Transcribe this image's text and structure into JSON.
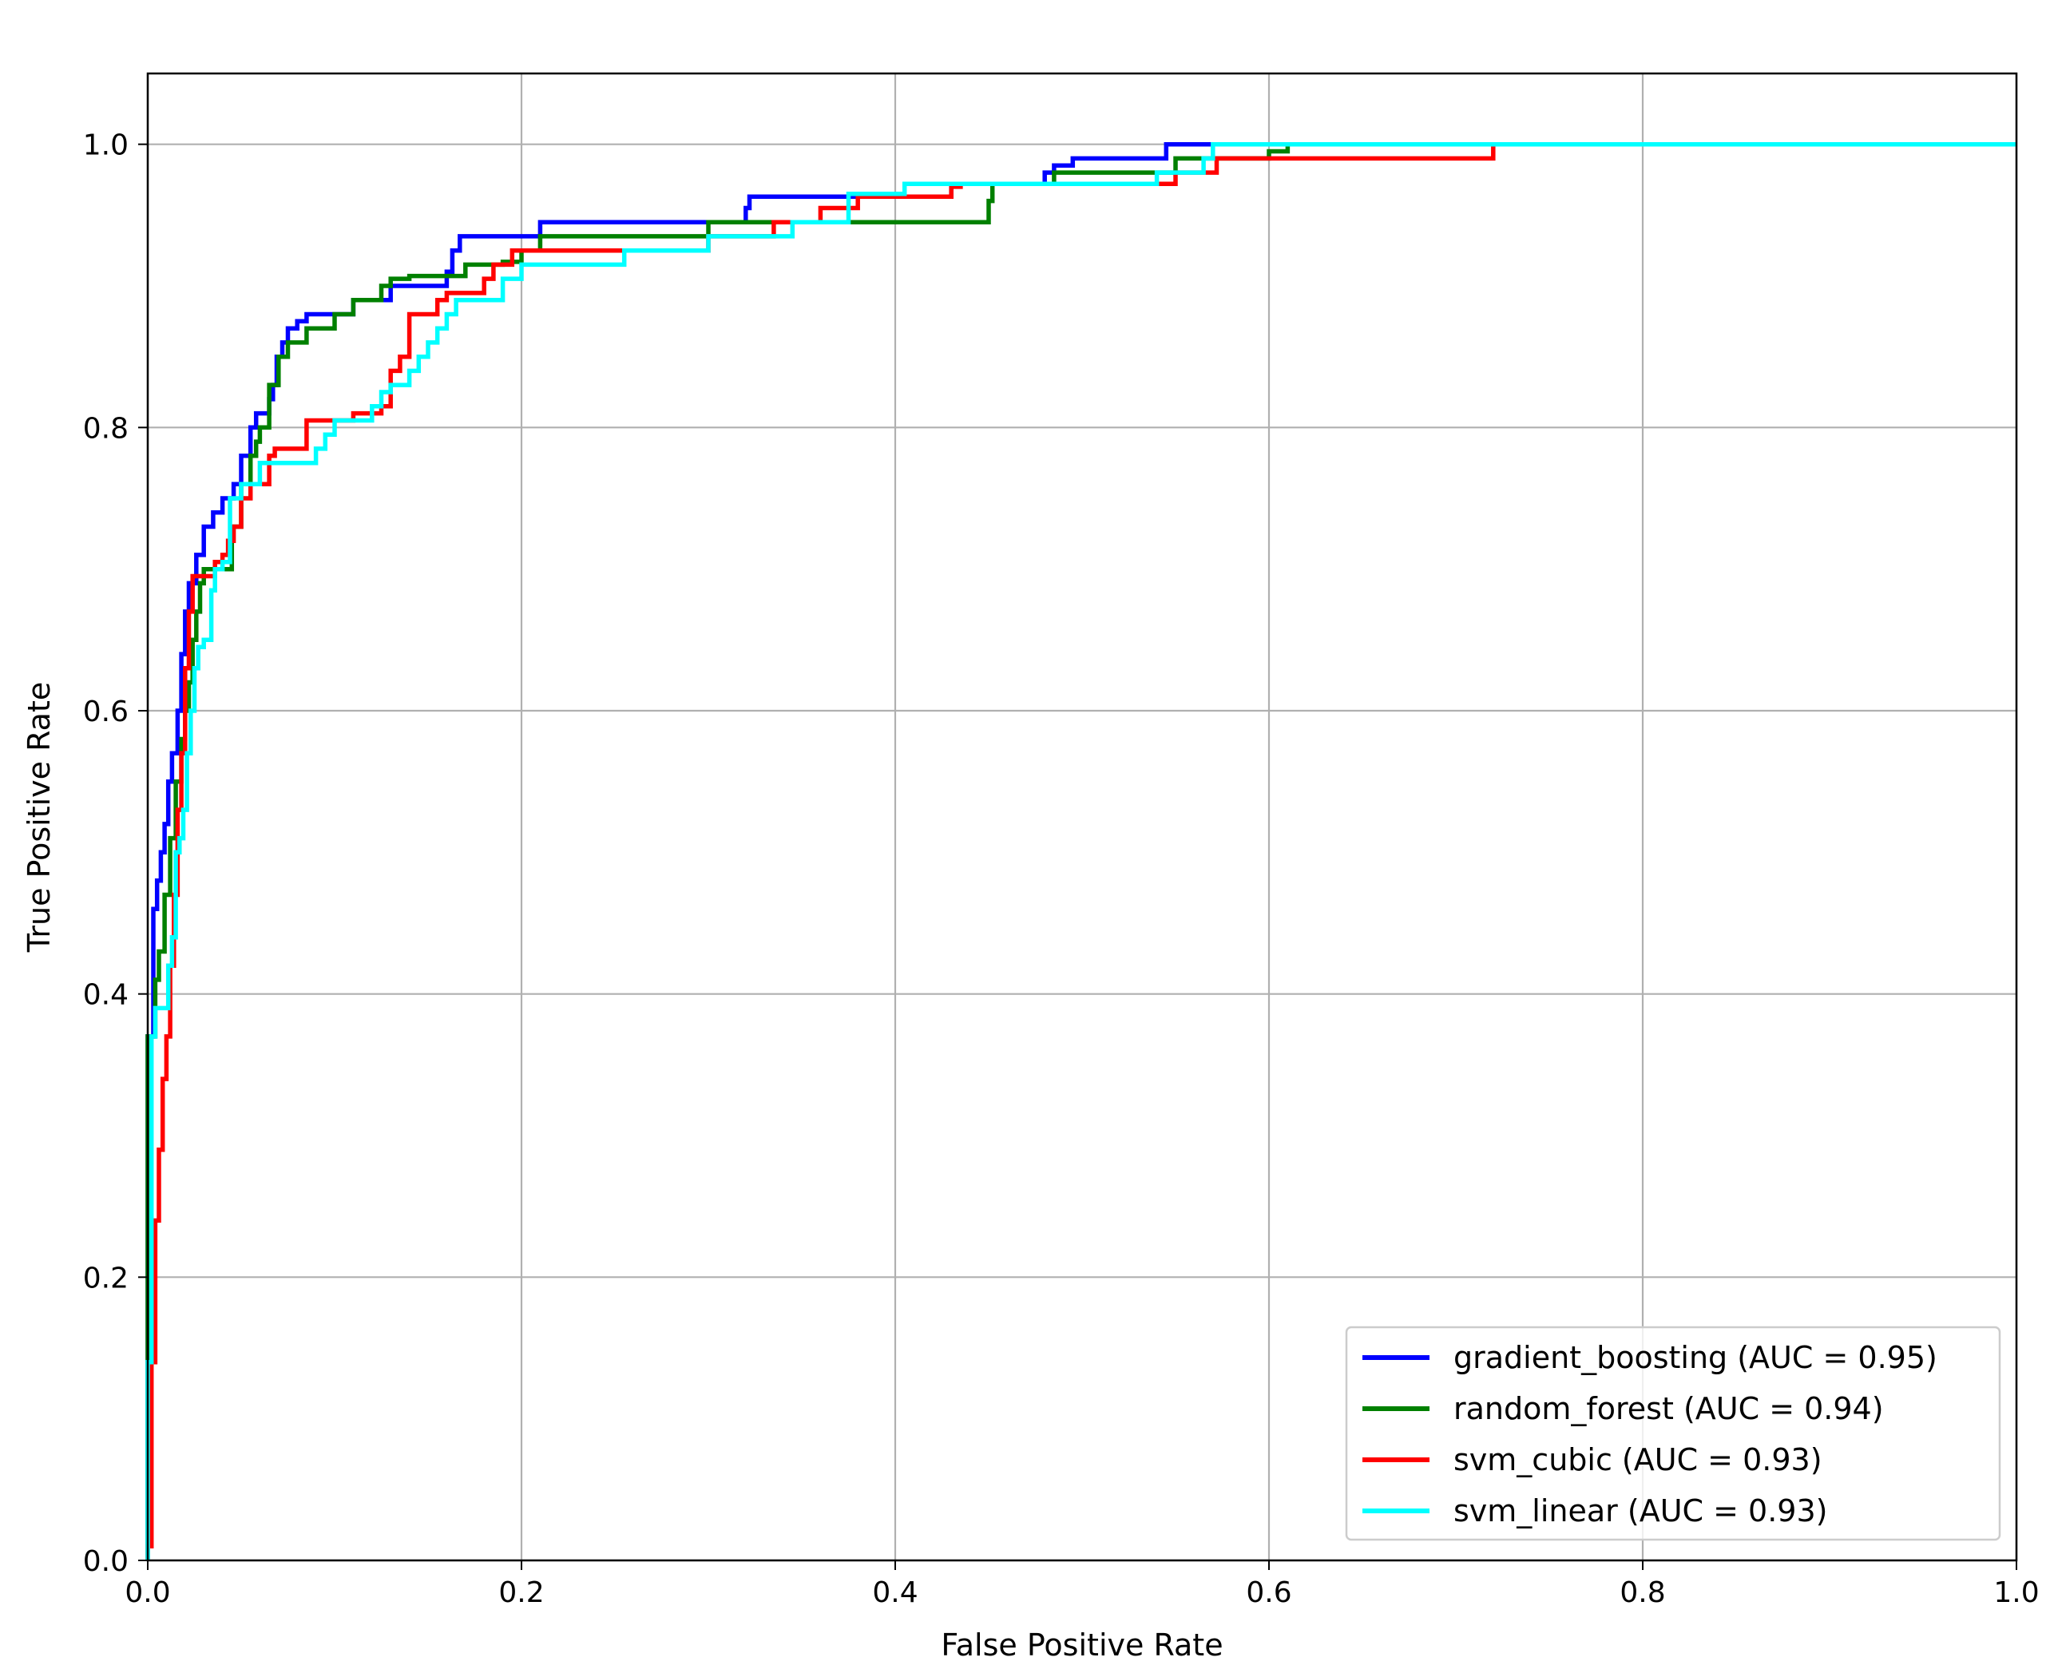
{
  "chart_data": {
    "type": "line",
    "title": "",
    "xlabel": "False Positive Rate",
    "ylabel": "True Positive Rate",
    "xlim": [
      0.0,
      1.0
    ],
    "ylim": [
      0.0,
      1.05
    ],
    "xticks": [
      0.0,
      0.2,
      0.4,
      0.6,
      0.8,
      1.0
    ],
    "yticks": [
      0.0,
      0.2,
      0.4,
      0.6,
      0.8,
      1.0
    ],
    "xtick_labels": [
      "0.0",
      "0.2",
      "0.4",
      "0.6",
      "0.8",
      "1.0"
    ],
    "ytick_labels": [
      "0.0",
      "0.2",
      "0.4",
      "0.6",
      "0.8",
      "1.0"
    ],
    "grid": true,
    "legend_position": "lower-right",
    "series": [
      {
        "name": "gradient_boosting (AUC = 0.95)",
        "color": "#0000ff",
        "x": [
          0.0,
          0.0,
          0.003,
          0.003,
          0.005,
          0.005,
          0.007,
          0.007,
          0.009,
          0.009,
          0.011,
          0.011,
          0.013,
          0.013,
          0.016,
          0.016,
          0.018,
          0.018,
          0.02,
          0.02,
          0.022,
          0.022,
          0.024,
          0.024,
          0.026,
          0.026,
          0.03,
          0.03,
          0.035,
          0.035,
          0.04,
          0.04,
          0.046,
          0.046,
          0.05,
          0.05,
          0.055,
          0.055,
          0.058,
          0.058,
          0.065,
          0.065,
          0.067,
          0.067,
          0.069,
          0.069,
          0.072,
          0.072,
          0.075,
          0.075,
          0.08,
          0.08,
          0.085,
          0.085,
          0.11,
          0.11,
          0.13,
          0.13,
          0.16,
          0.16,
          0.163,
          0.163,
          0.167,
          0.167,
          0.21,
          0.21,
          0.32,
          0.32,
          0.322,
          0.322,
          0.43,
          0.43,
          0.48,
          0.48,
          0.485,
          0.485,
          0.495,
          0.495,
          0.545,
          0.545,
          0.57,
          0.57,
          1.0
        ],
        "y": [
          0.0,
          0.37,
          0.37,
          0.46,
          0.46,
          0.48,
          0.48,
          0.5,
          0.5,
          0.52,
          0.52,
          0.55,
          0.55,
          0.57,
          0.57,
          0.6,
          0.6,
          0.64,
          0.64,
          0.67,
          0.67,
          0.69,
          0.69,
          0.69,
          0.69,
          0.71,
          0.71,
          0.73,
          0.73,
          0.74,
          0.74,
          0.75,
          0.75,
          0.76,
          0.76,
          0.78,
          0.78,
          0.8,
          0.8,
          0.81,
          0.81,
          0.82,
          0.82,
          0.83,
          0.83,
          0.85,
          0.85,
          0.86,
          0.86,
          0.87,
          0.87,
          0.875,
          0.875,
          0.88,
          0.88,
          0.89,
          0.89,
          0.9,
          0.9,
          0.91,
          0.91,
          0.925,
          0.925,
          0.935,
          0.935,
          0.945,
          0.945,
          0.955,
          0.955,
          0.963,
          0.963,
          0.972,
          0.972,
          0.98,
          0.98,
          0.985,
          0.985,
          0.99,
          0.99,
          1.0,
          1.0,
          1.0,
          1.0
        ]
      },
      {
        "name": "random_forest (AUC = 0.94)",
        "color": "#008000",
        "x": [
          0.0,
          0.0,
          0.004,
          0.004,
          0.006,
          0.006,
          0.009,
          0.009,
          0.012,
          0.012,
          0.015,
          0.015,
          0.018,
          0.018,
          0.02,
          0.02,
          0.022,
          0.022,
          0.024,
          0.024,
          0.026,
          0.026,
          0.028,
          0.028,
          0.03,
          0.03,
          0.045,
          0.045,
          0.05,
          0.05,
          0.055,
          0.055,
          0.058,
          0.058,
          0.06,
          0.06,
          0.065,
          0.065,
          0.07,
          0.07,
          0.075,
          0.075,
          0.085,
          0.085,
          0.1,
          0.1,
          0.11,
          0.11,
          0.125,
          0.125,
          0.13,
          0.13,
          0.14,
          0.14,
          0.17,
          0.17,
          0.19,
          0.19,
          0.2,
          0.2,
          0.21,
          0.21,
          0.3,
          0.3,
          0.45,
          0.45,
          0.452,
          0.452,
          0.485,
          0.485,
          0.55,
          0.55,
          0.6,
          0.6,
          0.61,
          0.61,
          1.0
        ],
        "y": [
          0.0,
          0.37,
          0.37,
          0.41,
          0.41,
          0.43,
          0.43,
          0.47,
          0.47,
          0.51,
          0.51,
          0.55,
          0.55,
          0.58,
          0.58,
          0.6,
          0.6,
          0.62,
          0.62,
          0.65,
          0.65,
          0.67,
          0.67,
          0.69,
          0.69,
          0.7,
          0.7,
          0.73,
          0.73,
          0.76,
          0.76,
          0.78,
          0.78,
          0.79,
          0.79,
          0.8,
          0.8,
          0.83,
          0.83,
          0.85,
          0.85,
          0.86,
          0.86,
          0.87,
          0.87,
          0.88,
          0.88,
          0.89,
          0.89,
          0.9,
          0.9,
          0.905,
          0.905,
          0.907,
          0.907,
          0.915,
          0.915,
          0.917,
          0.917,
          0.925,
          0.925,
          0.935,
          0.935,
          0.945,
          0.945,
          0.96,
          0.96,
          0.972,
          0.972,
          0.98,
          0.98,
          0.99,
          0.99,
          0.995,
          0.995,
          1.0,
          1.0
        ]
      },
      {
        "name": "svm_cubic (AUC = 0.93)",
        "color": "#ff0000",
        "x": [
          0.0,
          0.0,
          0.002,
          0.002,
          0.004,
          0.004,
          0.006,
          0.006,
          0.008,
          0.008,
          0.01,
          0.01,
          0.012,
          0.012,
          0.014,
          0.014,
          0.016,
          0.016,
          0.018,
          0.018,
          0.02,
          0.02,
          0.022,
          0.022,
          0.024,
          0.024,
          0.036,
          0.036,
          0.04,
          0.04,
          0.043,
          0.043,
          0.046,
          0.046,
          0.05,
          0.05,
          0.055,
          0.055,
          0.065,
          0.065,
          0.068,
          0.068,
          0.085,
          0.085,
          0.11,
          0.11,
          0.125,
          0.125,
          0.13,
          0.13,
          0.135,
          0.135,
          0.14,
          0.14,
          0.155,
          0.155,
          0.16,
          0.16,
          0.18,
          0.18,
          0.185,
          0.185,
          0.195,
          0.195,
          0.3,
          0.3,
          0.335,
          0.335,
          0.36,
          0.36,
          0.38,
          0.38,
          0.43,
          0.43,
          0.435,
          0.435,
          0.55,
          0.55,
          0.572,
          0.572,
          0.588,
          0.588,
          0.72,
          0.72,
          1.0
        ],
        "y": [
          0.0,
          0.01,
          0.01,
          0.14,
          0.14,
          0.24,
          0.24,
          0.29,
          0.29,
          0.34,
          0.34,
          0.37,
          0.37,
          0.42,
          0.42,
          0.47,
          0.47,
          0.53,
          0.53,
          0.57,
          0.57,
          0.63,
          0.63,
          0.67,
          0.67,
          0.695,
          0.695,
          0.705,
          0.705,
          0.71,
          0.71,
          0.72,
          0.72,
          0.73,
          0.73,
          0.75,
          0.75,
          0.76,
          0.76,
          0.78,
          0.78,
          0.785,
          0.785,
          0.805,
          0.805,
          0.81,
          0.81,
          0.815,
          0.815,
          0.84,
          0.84,
          0.85,
          0.85,
          0.88,
          0.88,
          0.89,
          0.89,
          0.895,
          0.895,
          0.905,
          0.905,
          0.915,
          0.915,
          0.925,
          0.925,
          0.935,
          0.935,
          0.945,
          0.945,
          0.955,
          0.955,
          0.963,
          0.963,
          0.97,
          0.97,
          0.972,
          0.972,
          0.98,
          0.98,
          0.99,
          0.99,
          0.99,
          0.99,
          1.0,
          1.0
        ]
      },
      {
        "name": "svm_linear (AUC = 0.93)",
        "color": "#00ffff",
        "x": [
          0.0,
          0.0,
          0.002,
          0.002,
          0.004,
          0.004,
          0.011,
          0.011,
          0.013,
          0.013,
          0.015,
          0.015,
          0.017,
          0.017,
          0.019,
          0.019,
          0.021,
          0.021,
          0.023,
          0.023,
          0.025,
          0.025,
          0.027,
          0.027,
          0.03,
          0.03,
          0.034,
          0.034,
          0.036,
          0.036,
          0.04,
          0.04,
          0.044,
          0.044,
          0.05,
          0.05,
          0.06,
          0.06,
          0.09,
          0.09,
          0.095,
          0.095,
          0.1,
          0.1,
          0.12,
          0.12,
          0.125,
          0.125,
          0.13,
          0.13,
          0.14,
          0.14,
          0.145,
          0.145,
          0.15,
          0.15,
          0.155,
          0.155,
          0.16,
          0.16,
          0.165,
          0.165,
          0.19,
          0.19,
          0.2,
          0.2,
          0.255,
          0.255,
          0.3,
          0.3,
          0.345,
          0.345,
          0.375,
          0.375,
          0.405,
          0.405,
          0.54,
          0.54,
          0.565,
          0.565,
          0.57,
          0.57,
          1.0
        ],
        "y": [
          0.0,
          0.14,
          0.14,
          0.37,
          0.37,
          0.39,
          0.39,
          0.42,
          0.42,
          0.44,
          0.44,
          0.5,
          0.5,
          0.51,
          0.51,
          0.53,
          0.53,
          0.57,
          0.57,
          0.6,
          0.6,
          0.63,
          0.63,
          0.645,
          0.645,
          0.65,
          0.65,
          0.685,
          0.685,
          0.7,
          0.7,
          0.705,
          0.705,
          0.75,
          0.75,
          0.76,
          0.76,
          0.775,
          0.775,
          0.785,
          0.785,
          0.795,
          0.795,
          0.805,
          0.805,
          0.815,
          0.815,
          0.825,
          0.825,
          0.83,
          0.83,
          0.84,
          0.84,
          0.85,
          0.85,
          0.86,
          0.86,
          0.87,
          0.87,
          0.88,
          0.88,
          0.89,
          0.89,
          0.905,
          0.905,
          0.915,
          0.915,
          0.925,
          0.925,
          0.935,
          0.935,
          0.945,
          0.945,
          0.965,
          0.965,
          0.972,
          0.972,
          0.98,
          0.98,
          0.99,
          0.99,
          1.0,
          1.0
        ]
      }
    ]
  }
}
